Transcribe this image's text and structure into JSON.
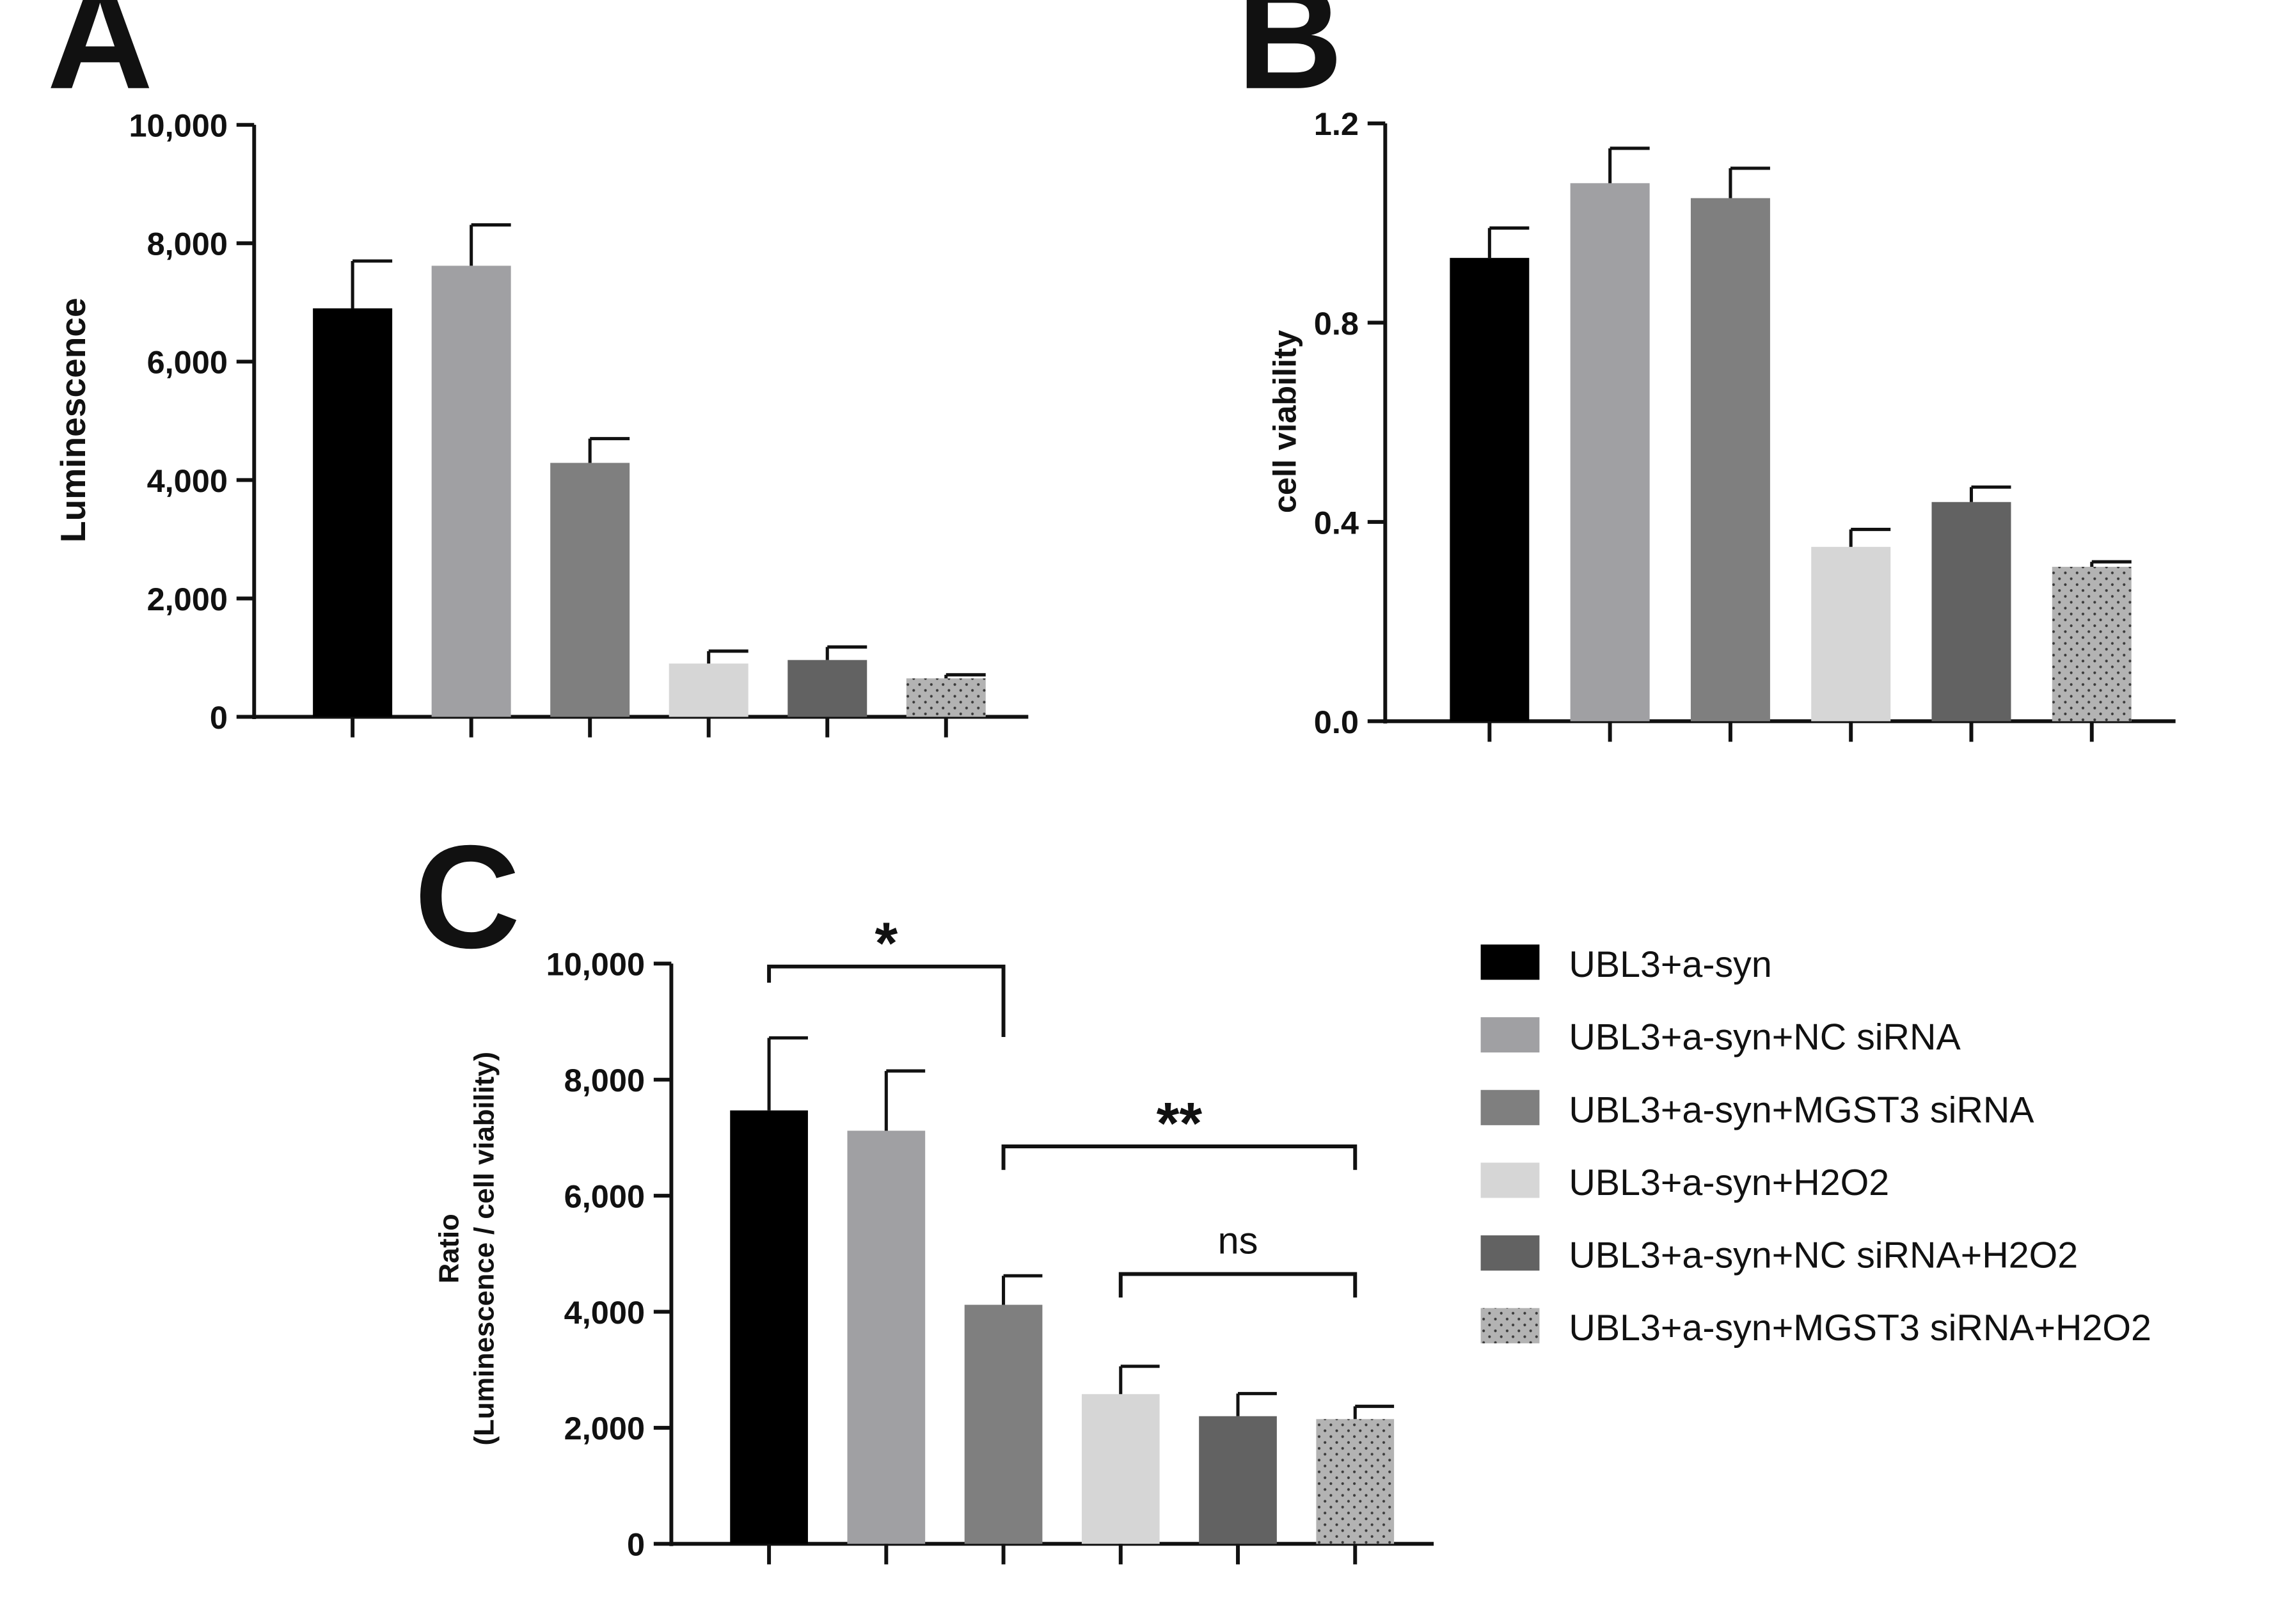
{
  "groups": [
    {
      "name": "UBL3+a-syn",
      "color": "#000000",
      "pattern": false
    },
    {
      "name": "UBL3+a-syn+NC siRNA",
      "color": "#a0a0a3",
      "pattern": false
    },
    {
      "name": "UBL3+a-syn+MGST3 siRNA",
      "color": "#7f7f7f",
      "pattern": false
    },
    {
      "name": "UBL3+a-syn+H2O2",
      "color": "#d6d6d6",
      "pattern": false
    },
    {
      "name": "UBL3+a-syn+NC siRNA+H2O2",
      "color": "#626262",
      "pattern": false
    },
    {
      "name": "UBL3+a-syn+MGST3 siRNA+H2O2",
      "color": "#b3b3b3",
      "pattern": true
    }
  ],
  "chart_data": [
    {
      "panel": "A",
      "type": "bar",
      "ylabel": "Luminescence",
      "ylim": [
        0,
        10000
      ],
      "yticks": [
        0,
        2000,
        4000,
        6000,
        8000,
        10000
      ],
      "ytick_labels": [
        "0",
        "2,000",
        "4,000",
        "6,000",
        "8,000",
        "10,000"
      ],
      "categories": [
        "UBL3+a-syn",
        "UBL3+a-syn+NC siRNA",
        "UBL3+a-syn+MGST3 siRNA",
        "UBL3+a-syn+H2O2",
        "UBL3+a-syn+NC siRNA+H2O2",
        "UBL3+a-syn+MGST3 siRNA+H2O2"
      ],
      "values": [
        6900,
        7620,
        4290,
        900,
        960,
        650
      ],
      "errors": [
        800,
        690,
        410,
        210,
        220,
        60
      ],
      "significance": []
    },
    {
      "panel": "B",
      "type": "bar",
      "ylabel": "cell viability",
      "ylim": [
        0,
        1.2
      ],
      "yticks": [
        0,
        0.4,
        0.8,
        1.2
      ],
      "ytick_labels": [
        "0.0",
        "0.4",
        "0.8",
        "1.2"
      ],
      "categories": [
        "UBL3+a-syn",
        "UBL3+a-syn+NC siRNA",
        "UBL3+a-syn+MGST3 siRNA",
        "UBL3+a-syn+H2O2",
        "UBL3+a-syn+NC siRNA+H2O2",
        "UBL3+a-syn+MGST3 siRNA+H2O2"
      ],
      "values": [
        0.93,
        1.08,
        1.05,
        0.35,
        0.44,
        0.31
      ],
      "errors": [
        0.06,
        0.07,
        0.06,
        0.035,
        0.03,
        0.01
      ],
      "significance": []
    },
    {
      "panel": "C",
      "type": "bar",
      "ylabel_line1": "Ratio",
      "ylabel_line2": "(Luminescence / cell viability)",
      "ylim": [
        0,
        10000
      ],
      "yticks": [
        0,
        2000,
        4000,
        6000,
        8000,
        10000
      ],
      "ytick_labels": [
        "0",
        "2,000",
        "4,000",
        "6,000",
        "8,000",
        "10,000"
      ],
      "categories": [
        "UBL3+a-syn",
        "UBL3+a-syn+NC siRNA",
        "UBL3+a-syn+MGST3 siRNA",
        "UBL3+a-syn+H2O2",
        "UBL3+a-syn+NC siRNA+H2O2",
        "UBL3+a-syn+MGST3 siRNA+H2O2"
      ],
      "values": [
        7470,
        7120,
        4120,
        2580,
        2200,
        2150
      ],
      "errors": [
        1250,
        1030,
        500,
        480,
        390,
        220
      ],
      "significance": [
        {
          "from": 0,
          "to": 2,
          "label": "*",
          "level": 9950
        },
        {
          "from": 2,
          "to": 5,
          "label": "**",
          "level": 6850
        },
        {
          "from": 3,
          "to": 5,
          "label": "ns",
          "level": 4650
        }
      ]
    }
  ]
}
